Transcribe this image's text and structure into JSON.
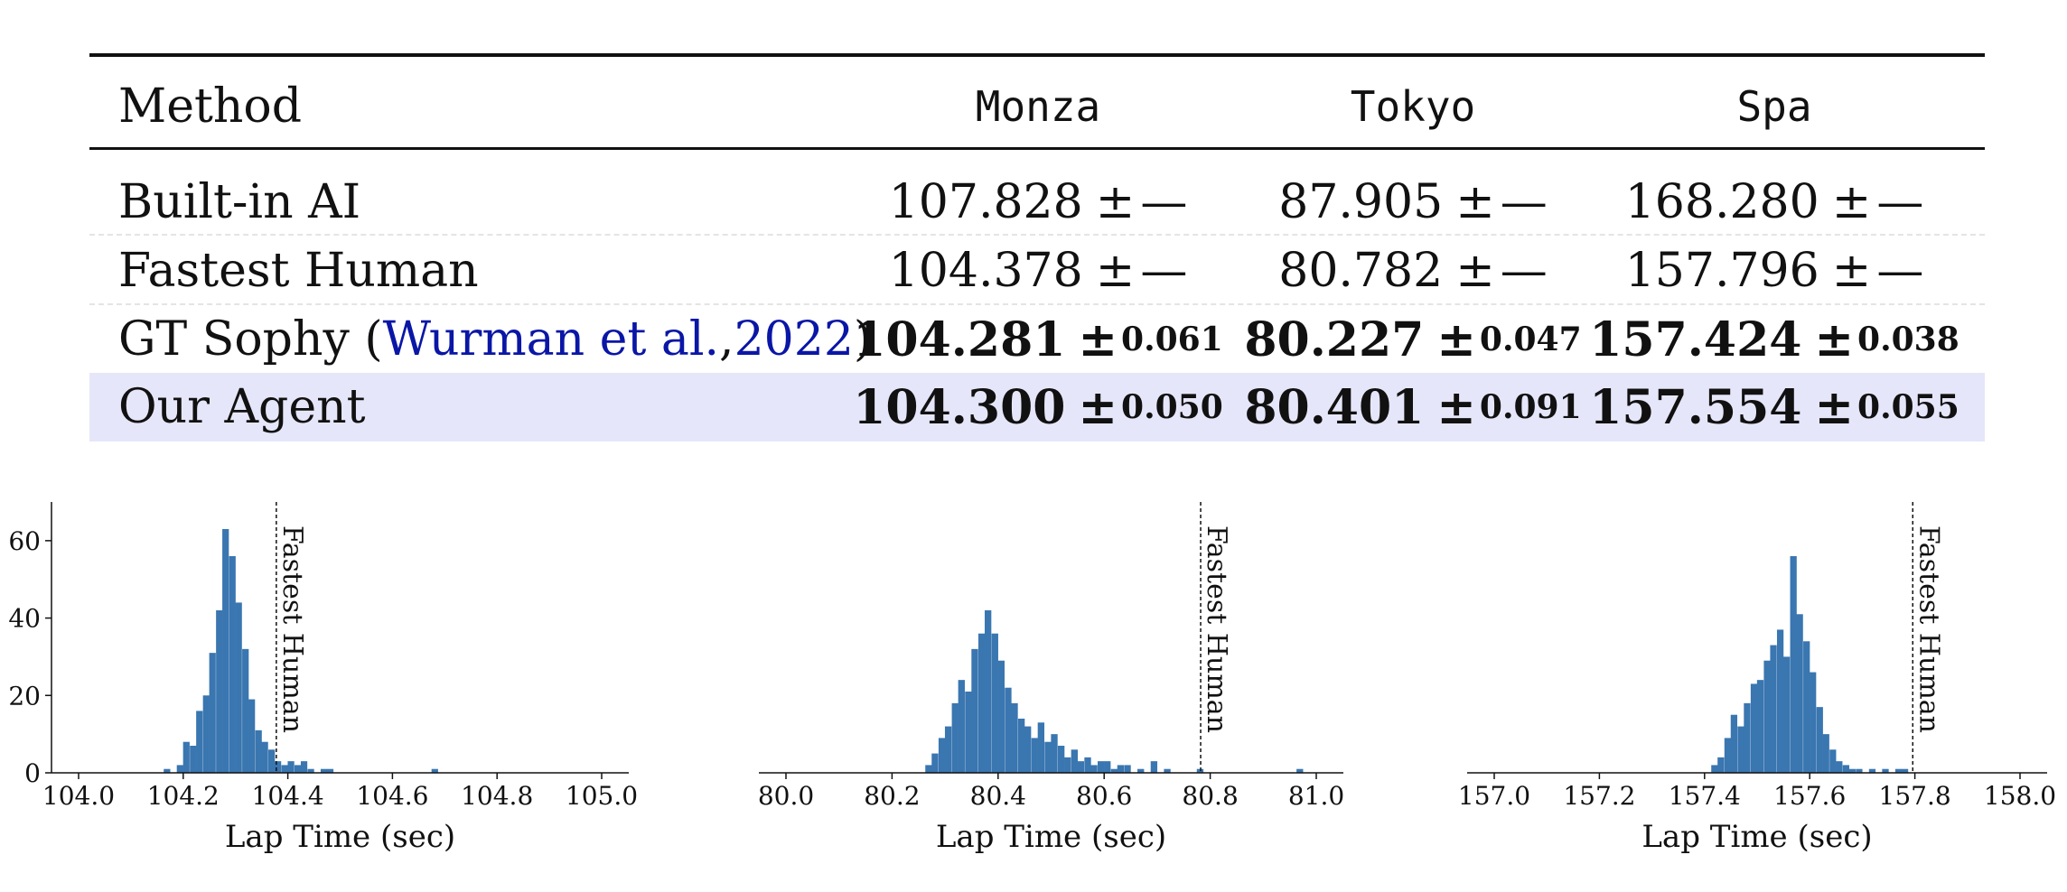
{
  "table": {
    "headers": [
      "Method",
      "Monza",
      "Tokyo",
      "Spa"
    ],
    "rows": [
      {
        "method": "Built-in AI",
        "bold": false,
        "highlight": false,
        "cells": [
          {
            "mean": "107.828",
            "pm": "±",
            "std": "—"
          },
          {
            "mean": "87.905",
            "pm": "±",
            "std": "—"
          },
          {
            "mean": "168.280",
            "pm": "±",
            "std": "—"
          }
        ]
      },
      {
        "method": "Fastest Human",
        "bold": false,
        "highlight": false,
        "cells": [
          {
            "mean": "104.378",
            "pm": "±",
            "std": "—"
          },
          {
            "mean": "80.782",
            "pm": "±",
            "std": "—"
          },
          {
            "mean": "157.796",
            "pm": "±",
            "std": "—"
          }
        ]
      },
      {
        "method_prefix": "GT Sophy (",
        "method_cite_author": "Wurman et al.",
        "method_cite_sep": ", ",
        "method_cite_year": "2022",
        "method_suffix": ")",
        "bold": true,
        "highlight": false,
        "cells": [
          {
            "mean": "104.281",
            "pm": "±",
            "std": "0.061"
          },
          {
            "mean": "80.227",
            "pm": "±",
            "std": "0.047"
          },
          {
            "mean": "157.424",
            "pm": "±",
            "std": "0.038"
          }
        ]
      },
      {
        "method": "Our Agent",
        "bold": true,
        "highlight": true,
        "cells": [
          {
            "mean": "104.300",
            "pm": "±",
            "std": "0.050"
          },
          {
            "mean": "80.401",
            "pm": "±",
            "std": "0.091"
          },
          {
            "mean": "157.554",
            "pm": "±",
            "std": "0.055"
          }
        ]
      }
    ],
    "colors": {
      "highlight": "#e6e6fa",
      "citation": "#0a16a6"
    }
  },
  "chart_data": [
    {
      "type": "bar",
      "track": "Monza",
      "xlabel": "Lap Time (sec)",
      "xlim": [
        104.0,
        105.0
      ],
      "xticks": [
        "104.0",
        "104.2",
        "104.4",
        "104.6",
        "104.8",
        "105.0"
      ],
      "ylim": [
        0,
        70
      ],
      "yticks": [
        "0",
        "20",
        "40",
        "60"
      ],
      "bin_width": 0.0125,
      "bins": [
        [
          104.169,
          1
        ],
        [
          104.194,
          2
        ],
        [
          104.206,
          8
        ],
        [
          104.219,
          7
        ],
        [
          104.231,
          16
        ],
        [
          104.244,
          20
        ],
        [
          104.256,
          31
        ],
        [
          104.269,
          42
        ],
        [
          104.281,
          63
        ],
        [
          104.294,
          56
        ],
        [
          104.306,
          44
        ],
        [
          104.319,
          32
        ],
        [
          104.331,
          19
        ],
        [
          104.344,
          11
        ],
        [
          104.356,
          8
        ],
        [
          104.369,
          6
        ],
        [
          104.381,
          3
        ],
        [
          104.394,
          2
        ],
        [
          104.406,
          3
        ],
        [
          104.419,
          2
        ],
        [
          104.431,
          3
        ],
        [
          104.444,
          1
        ],
        [
          104.469,
          1
        ],
        [
          104.481,
          1
        ],
        [
          104.681,
          1
        ]
      ],
      "reference_line": {
        "x": 104.378,
        "label": "Fastest Human"
      },
      "color": "#3a76b0"
    },
    {
      "type": "bar",
      "track": "Tokyo",
      "xlabel": "Lap Time (sec)",
      "xlim": [
        80.0,
        81.0
      ],
      "xticks": [
        "80.0",
        "80.2",
        "80.4",
        "80.6",
        "80.8",
        "81.0"
      ],
      "ylim": [
        0,
        70
      ],
      "bin_width": 0.0125,
      "bins": [
        [
          80.269,
          2
        ],
        [
          80.281,
          5
        ],
        [
          80.294,
          9
        ],
        [
          80.306,
          12
        ],
        [
          80.319,
          18
        ],
        [
          80.331,
          24
        ],
        [
          80.344,
          21
        ],
        [
          80.356,
          32
        ],
        [
          80.369,
          36
        ],
        [
          80.381,
          42
        ],
        [
          80.394,
          36
        ],
        [
          80.406,
          29
        ],
        [
          80.419,
          22
        ],
        [
          80.431,
          18
        ],
        [
          80.444,
          14
        ],
        [
          80.456,
          12
        ],
        [
          80.469,
          9
        ],
        [
          80.481,
          13
        ],
        [
          80.494,
          8
        ],
        [
          80.506,
          10
        ],
        [
          80.519,
          7
        ],
        [
          80.531,
          4
        ],
        [
          80.544,
          6
        ],
        [
          80.556,
          3
        ],
        [
          80.569,
          4
        ],
        [
          80.581,
          2
        ],
        [
          80.594,
          3
        ],
        [
          80.606,
          3
        ],
        [
          80.619,
          1
        ],
        [
          80.631,
          2
        ],
        [
          80.644,
          2
        ],
        [
          80.669,
          1
        ],
        [
          80.694,
          3
        ],
        [
          80.719,
          1
        ],
        [
          80.781,
          1
        ],
        [
          80.969,
          1
        ]
      ],
      "reference_line": {
        "x": 80.782,
        "label": "Fastest Human"
      },
      "color": "#3a76b0"
    },
    {
      "type": "bar",
      "track": "Spa",
      "xlabel": "Lap Time (sec)",
      "xlim": [
        157.0,
        158.0
      ],
      "xticks": [
        "157.0",
        "157.2",
        "157.4",
        "157.6",
        "157.8",
        "158.0"
      ],
      "ylim": [
        0,
        70
      ],
      "bin_width": 0.0125,
      "bins": [
        [
          157.419,
          2
        ],
        [
          157.431,
          4
        ],
        [
          157.444,
          9
        ],
        [
          157.456,
          15
        ],
        [
          157.469,
          12
        ],
        [
          157.481,
          18
        ],
        [
          157.494,
          23
        ],
        [
          157.506,
          24
        ],
        [
          157.519,
          29
        ],
        [
          157.531,
          33
        ],
        [
          157.544,
          37
        ],
        [
          157.556,
          30
        ],
        [
          157.569,
          56
        ],
        [
          157.581,
          41
        ],
        [
          157.594,
          34
        ],
        [
          157.606,
          26
        ],
        [
          157.619,
          17
        ],
        [
          157.631,
          10
        ],
        [
          157.644,
          6
        ],
        [
          157.656,
          3
        ],
        [
          157.669,
          2
        ],
        [
          157.681,
          1
        ],
        [
          157.694,
          1
        ],
        [
          157.719,
          1
        ],
        [
          157.744,
          1
        ],
        [
          157.769,
          1
        ],
        [
          157.781,
          1
        ]
      ],
      "reference_line": {
        "x": 157.796,
        "label": "Fastest Human"
      },
      "color": "#3a76b0"
    }
  ]
}
